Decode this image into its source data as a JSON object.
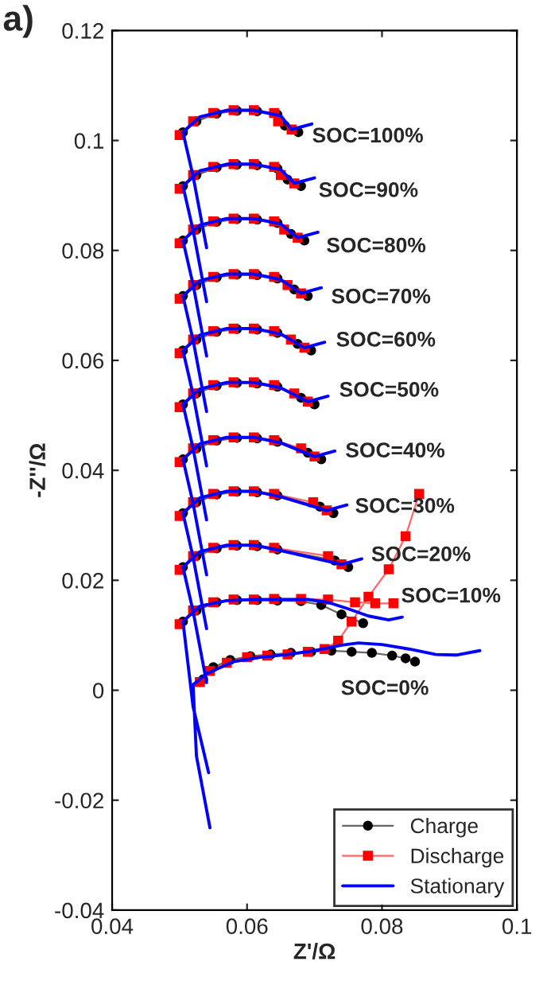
{
  "chart_data": {
    "type": "line",
    "xlabel": "Z'/Ω",
    "ylabel": "-Z''/Ω",
    "xlim": [
      0.04,
      0.1
    ],
    "xticks": [
      0.04,
      0.06,
      0.08,
      0.1
    ],
    "ylim": [
      -0.04,
      0.12
    ],
    "yticks": [
      -0.04,
      -0.02,
      0,
      0.02,
      0.04,
      0.06,
      0.08,
      0.1,
      0.12
    ],
    "grid": false,
    "legend": "bottom right",
    "series": [
      {
        "name": "Charge",
        "color": "#000000",
        "marker": "circle",
        "x": [
          0.0505,
          0.0525,
          0.0555,
          0.0585,
          0.0615,
          0.0645,
          0.0656,
          0.0676,
          null,
          0.0505,
          0.0525,
          0.0555,
          0.0585,
          0.0615,
          0.0645,
          0.066,
          0.068,
          null,
          0.0505,
          0.0525,
          0.0555,
          0.0585,
          0.0615,
          0.0645,
          0.0665,
          0.0685,
          null,
          0.0505,
          0.0525,
          0.0555,
          0.0585,
          0.0615,
          0.0645,
          0.067,
          0.069,
          null,
          0.0505,
          0.0525,
          0.0555,
          0.0585,
          0.0615,
          0.0645,
          0.0675,
          0.0695,
          null,
          0.0505,
          0.0525,
          0.0555,
          0.0585,
          0.0615,
          0.0645,
          0.068,
          0.07,
          null,
          0.0505,
          0.0525,
          0.0555,
          0.0585,
          0.0615,
          0.0645,
          0.069,
          0.071,
          null,
          0.0505,
          0.0525,
          0.0555,
          0.0585,
          0.0615,
          0.0645,
          0.0708,
          0.0728,
          null,
          0.0505,
          0.0525,
          0.0555,
          0.0585,
          0.0615,
          0.0645,
          0.073,
          0.075,
          null,
          0.0505,
          0.0525,
          0.0555,
          0.0585,
          0.0615,
          0.0645,
          0.068,
          0.071,
          0.074,
          0.0772,
          null,
          0.0535,
          0.055,
          0.0575,
          0.0605,
          0.0635,
          0.0665,
          0.0695,
          0.0725,
          0.0755,
          0.0785,
          0.0815,
          0.0835,
          0.0849
        ],
        "values": [
          0.1015,
          0.1035,
          0.1049,
          0.1054,
          0.1053,
          0.1047,
          0.1027,
          0.1015,
          null,
          0.0917,
          0.0937,
          0.0951,
          0.0956,
          0.0955,
          0.0949,
          0.0929,
          0.0917,
          null,
          0.0818,
          0.0838,
          0.0852,
          0.0857,
          0.0856,
          0.085,
          0.083,
          0.0818,
          null,
          0.0717,
          0.0737,
          0.0751,
          0.0756,
          0.0755,
          0.0749,
          0.0729,
          0.0717,
          null,
          0.0618,
          0.0638,
          0.0652,
          0.0657,
          0.0656,
          0.065,
          0.063,
          0.0618,
          null,
          0.052,
          0.054,
          0.0554,
          0.0559,
          0.0558,
          0.0552,
          0.0532,
          0.052,
          null,
          0.042,
          0.044,
          0.0454,
          0.0459,
          0.0458,
          0.0452,
          0.0432,
          0.042,
          null,
          0.0322,
          0.0342,
          0.0356,
          0.0361,
          0.036,
          0.0354,
          0.0334,
          0.0322,
          null,
          0.0224,
          0.0244,
          0.0258,
          0.0263,
          0.0262,
          0.0256,
          0.0236,
          0.0224,
          null,
          0.0125,
          0.0145,
          0.016,
          0.0164,
          0.0164,
          0.0163,
          0.0162,
          0.0155,
          0.0138,
          0.0122,
          null,
          0.002,
          0.0042,
          0.0055,
          0.0062,
          0.0065,
          0.0068,
          0.007,
          0.0072,
          0.007,
          0.0068,
          0.0063,
          0.0058,
          0.0052
        ]
      },
      {
        "name": "Discharge",
        "color": "#ff0000",
        "marker": "square",
        "x": [
          0.05,
          0.052,
          0.055,
          0.058,
          0.061,
          0.064,
          0.0646,
          0.0666,
          null,
          0.05,
          0.052,
          0.055,
          0.058,
          0.061,
          0.064,
          0.065,
          0.067,
          null,
          0.05,
          0.052,
          0.055,
          0.058,
          0.061,
          0.064,
          0.0655,
          0.0675,
          null,
          0.05,
          0.052,
          0.055,
          0.058,
          0.061,
          0.064,
          0.066,
          0.068,
          null,
          0.05,
          0.052,
          0.055,
          0.058,
          0.061,
          0.064,
          0.0665,
          0.0685,
          null,
          0.05,
          0.052,
          0.055,
          0.058,
          0.061,
          0.064,
          0.067,
          0.069,
          null,
          0.05,
          0.052,
          0.055,
          0.058,
          0.061,
          0.064,
          0.068,
          0.07,
          null,
          0.05,
          0.052,
          0.055,
          0.058,
          0.061,
          0.064,
          0.0698,
          0.0718,
          null,
          0.05,
          0.052,
          0.055,
          0.058,
          0.061,
          0.064,
          0.072,
          0.074,
          null,
          0.05,
          0.052,
          0.055,
          0.058,
          0.061,
          0.064,
          0.068,
          0.072,
          0.076,
          0.079,
          0.0817,
          null,
          0.053,
          0.0545,
          0.057,
          0.06,
          0.063,
          0.066,
          0.069,
          0.0715,
          0.0735,
          0.0755,
          0.078,
          0.081,
          0.0835,
          0.0855
        ],
        "values": [
          0.101,
          0.1035,
          0.105,
          0.1055,
          0.1055,
          0.105,
          0.1035,
          0.102,
          null,
          0.0912,
          0.0937,
          0.0952,
          0.0957,
          0.0957,
          0.0952,
          0.0937,
          0.0922,
          null,
          0.0813,
          0.0838,
          0.0853,
          0.0858,
          0.0858,
          0.0853,
          0.0838,
          0.0823,
          null,
          0.0712,
          0.0737,
          0.0752,
          0.0757,
          0.0757,
          0.0752,
          0.0737,
          0.0722,
          null,
          0.0613,
          0.0638,
          0.0653,
          0.0658,
          0.0658,
          0.0653,
          0.0638,
          0.0623,
          null,
          0.0515,
          0.054,
          0.0555,
          0.056,
          0.056,
          0.0555,
          0.054,
          0.0525,
          null,
          0.0415,
          0.044,
          0.0455,
          0.046,
          0.046,
          0.0455,
          0.044,
          0.0425,
          null,
          0.0317,
          0.0342,
          0.0357,
          0.0362,
          0.0362,
          0.0357,
          0.0342,
          0.0327,
          null,
          0.0219,
          0.0244,
          0.0259,
          0.0264,
          0.0264,
          0.0259,
          0.0244,
          0.0229,
          null,
          0.012,
          0.0145,
          0.016,
          0.0165,
          0.0165,
          0.0166,
          0.0166,
          0.0165,
          0.016,
          0.0158,
          0.0158,
          null,
          0.0015,
          0.0035,
          0.005,
          0.006,
          0.0063,
          0.0065,
          0.007,
          0.0075,
          0.009,
          0.0125,
          0.017,
          0.022,
          0.028,
          0.0357
        ]
      },
      {
        "name": "Stationary",
        "color": "#0000ff",
        "marker": "none",
        "x": [
          0.054,
          0.052,
          0.0505,
          0.053,
          0.057,
          0.061,
          0.065,
          0.0666,
          0.0696,
          null,
          0.054,
          0.052,
          0.0505,
          0.053,
          0.057,
          0.061,
          0.065,
          0.067,
          0.07,
          null,
          0.054,
          0.052,
          0.0505,
          0.053,
          0.057,
          0.061,
          0.065,
          0.0675,
          0.0705,
          null,
          0.054,
          0.052,
          0.0505,
          0.053,
          0.057,
          0.061,
          0.065,
          0.068,
          0.071,
          null,
          0.054,
          0.052,
          0.0505,
          0.053,
          0.057,
          0.061,
          0.065,
          0.0685,
          0.0715,
          null,
          0.054,
          0.052,
          0.0505,
          0.053,
          0.057,
          0.061,
          0.065,
          0.069,
          0.072,
          null,
          0.054,
          0.052,
          0.0505,
          0.053,
          0.057,
          0.061,
          0.065,
          0.07,
          0.073,
          null,
          0.054,
          0.052,
          0.0505,
          0.053,
          0.057,
          0.061,
          0.065,
          0.0718,
          0.0748,
          null,
          0.054,
          0.052,
          0.0505,
          0.053,
          0.057,
          0.061,
          0.065,
          0.074,
          0.077,
          null,
          0.0543,
          0.052,
          0.0505,
          0.053,
          0.057,
          0.061,
          0.065,
          0.069,
          0.072,
          0.075,
          0.078,
          0.081,
          0.083,
          null,
          0.0545,
          0.0525,
          0.052,
          0.054,
          0.058,
          0.062,
          0.066,
          0.07,
          0.074,
          0.0765,
          0.08,
          0.084,
          0.088,
          0.091,
          0.0945
        ],
        "values": [
          0.0805,
          0.0935,
          0.1015,
          0.1043,
          0.1055,
          0.1055,
          0.1045,
          0.102,
          0.103,
          null,
          0.0707,
          0.0837,
          0.0917,
          0.0945,
          0.0957,
          0.0957,
          0.0947,
          0.0922,
          0.0932,
          null,
          0.0608,
          0.0738,
          0.0818,
          0.0846,
          0.0858,
          0.0858,
          0.0848,
          0.0823,
          0.0833,
          null,
          0.0507,
          0.0637,
          0.0717,
          0.0745,
          0.0757,
          0.0757,
          0.0747,
          0.0722,
          0.0732,
          null,
          0.0408,
          0.0538,
          0.0618,
          0.0646,
          0.0658,
          0.0658,
          0.0648,
          0.0623,
          0.0633,
          null,
          0.031,
          0.044,
          0.052,
          0.0548,
          0.056,
          0.056,
          0.055,
          0.0525,
          0.0535,
          null,
          0.021,
          0.034,
          0.042,
          0.0448,
          0.046,
          0.046,
          0.045,
          0.0425,
          0.0435,
          null,
          0.0112,
          0.0242,
          0.0322,
          0.035,
          0.0362,
          0.0362,
          0.0352,
          0.0327,
          0.0337,
          null,
          0.0014,
          0.0144,
          0.0224,
          0.0252,
          0.0264,
          0.0264,
          0.0254,
          0.0229,
          0.0239,
          null,
          -0.015,
          -0.003,
          0.0125,
          0.0153,
          0.0163,
          0.0165,
          0.0165,
          0.0165,
          0.016,
          0.0148,
          0.0135,
          0.0128,
          0.0133,
          null,
          -0.025,
          -0.012,
          0.001,
          0.003,
          0.0052,
          0.006,
          0.0065,
          0.0072,
          0.0082,
          0.0086,
          0.0083,
          0.0075,
          0.0065,
          0.0064,
          0.0072
        ]
      }
    ],
    "annotations": [
      "a)",
      "SOC=100%",
      "SOC=90%",
      "SOC=80%",
      "SOC=70%",
      "SOC=60%",
      "SOC=50%",
      "SOC=40%",
      "SOC=30%",
      "SOC=20%",
      "SOC=10%",
      "SOC=0%"
    ]
  }
}
